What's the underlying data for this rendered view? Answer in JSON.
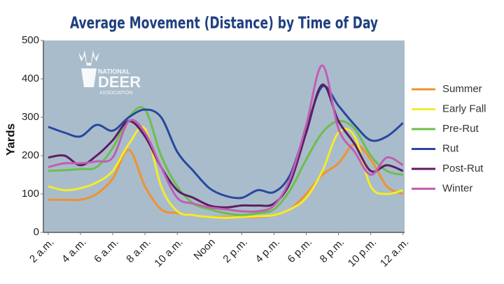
{
  "chart_data": {
    "type": "line",
    "title": "Average Movement (Distance) by Time of Day",
    "y_label": "Yards",
    "watermark": [
      "NATIONAL",
      "DEER",
      "ASSOCIATION"
    ],
    "x": [
      2,
      3,
      4,
      5,
      6,
      7,
      8,
      9,
      10,
      11,
      12,
      13,
      14,
      15,
      16,
      17,
      18,
      19,
      20,
      21,
      22,
      23,
      24
    ],
    "xlim": [
      1.7,
      24.1
    ],
    "xticks": [
      {
        "value": 2,
        "label": "2 a.m."
      },
      {
        "value": 4,
        "label": "4 a.m."
      },
      {
        "value": 6,
        "label": "6 a.m."
      },
      {
        "value": 8,
        "label": "8 a.m."
      },
      {
        "value": 10,
        "label": "10 a.m."
      },
      {
        "value": 12,
        "label": "Noon"
      },
      {
        "value": 14,
        "label": "2 p.m."
      },
      {
        "value": 16,
        "label": "4 p.m."
      },
      {
        "value": 18,
        "label": "6 p.m."
      },
      {
        "value": 20,
        "label": "8 p.m."
      },
      {
        "value": 22,
        "label": "10 p.m."
      },
      {
        "value": 24,
        "label": "12 a.m."
      }
    ],
    "ylim": [
      0,
      500
    ],
    "yticks": [
      0,
      100,
      200,
      300,
      400,
      500
    ],
    "series": [
      {
        "name": "Summer",
        "color": "#f0922f",
        "values": [
          85,
          85,
          85,
          100,
          140,
          215,
          120,
          60,
          50,
          45,
          40,
          40,
          40,
          40,
          45,
          60,
          100,
          150,
          180,
          230,
          190,
          120,
          100
        ]
      },
      {
        "name": "Early Fall",
        "color": "#f3ec2c",
        "values": [
          120,
          110,
          115,
          130,
          160,
          230,
          270,
          120,
          55,
          45,
          40,
          38,
          40,
          42,
          45,
          60,
          90,
          160,
          260,
          250,
          120,
          100,
          110
        ]
      },
      {
        "name": "Pre-Rut",
        "color": "#6dbf4a",
        "values": [
          160,
          162,
          165,
          170,
          220,
          300,
          320,
          200,
          120,
          75,
          60,
          50,
          45,
          50,
          60,
          110,
          190,
          260,
          290,
          270,
          200,
          160,
          150
        ]
      },
      {
        "name": "Rut",
        "color": "#2747a0",
        "values": [
          275,
          260,
          250,
          280,
          265,
          300,
          320,
          300,
          210,
          160,
          115,
          95,
          90,
          110,
          105,
          150,
          270,
          380,
          330,
          280,
          240,
          250,
          285
        ]
      },
      {
        "name": "Post-Rut",
        "color": "#5c1e62",
        "values": [
          195,
          200,
          175,
          200,
          240,
          290,
          250,
          170,
          110,
          90,
          70,
          65,
          70,
          70,
          75,
          130,
          260,
          385,
          290,
          230,
          160,
          175,
          160
        ]
      },
      {
        "name": "Winter",
        "color": "#c05fb3",
        "values": [
          170,
          180,
          180,
          185,
          195,
          290,
          260,
          170,
          90,
          75,
          65,
          60,
          55,
          55,
          70,
          140,
          280,
          435,
          270,
          210,
          150,
          195,
          175
        ]
      }
    ],
    "grid": false,
    "legend": "right"
  }
}
